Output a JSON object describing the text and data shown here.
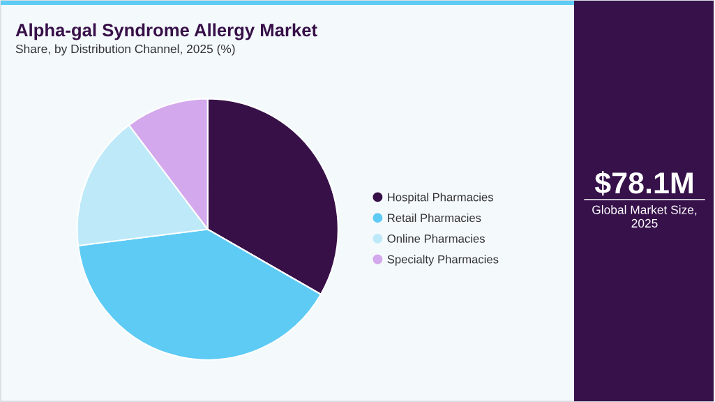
{
  "chart_data": {
    "type": "pie",
    "title": "Alpha-gal Syndrome Allergy Market",
    "subtitle": "Share, by Distribution Channel, 2025 (%)",
    "categories": [
      "Hospital Pharmacies",
      "Retail Pharmacies",
      "Online Pharmacies",
      "Specialty Pharmacies"
    ],
    "values": [
      33.3,
      39.7,
      16.7,
      10.3
    ],
    "colors": [
      "#371048",
      "#5ecbf5",
      "#bde9f9",
      "#d3a8ec"
    ],
    "legend": "right",
    "annotations": [
      "$78.1M",
      "Global Market Size,\n2025"
    ]
  }
}
